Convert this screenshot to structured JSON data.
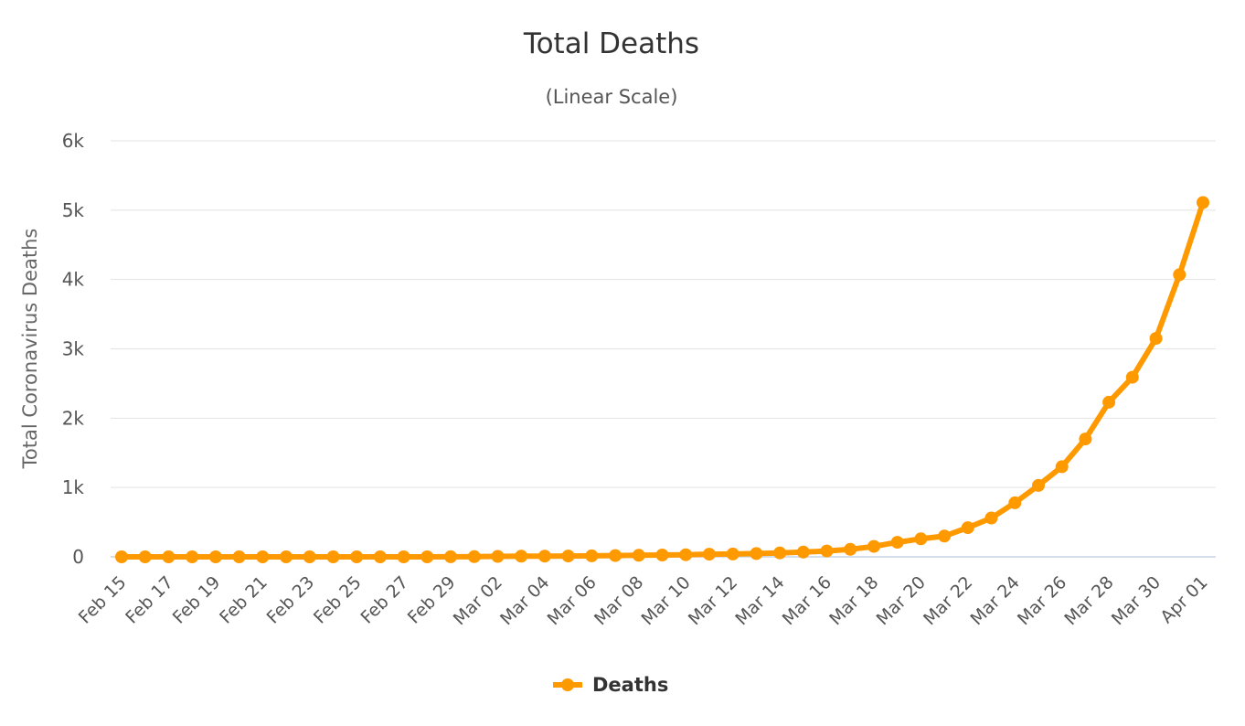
{
  "chart_data": {
    "type": "line",
    "title": "Total Deaths",
    "subtitle": "(Linear Scale)",
    "xlabel": "",
    "ylabel": "Total Coronavirus Deaths",
    "ylim": [
      0,
      6000
    ],
    "y_ticks": [
      {
        "value": 0,
        "label": "0"
      },
      {
        "value": 1000,
        "label": "1k"
      },
      {
        "value": 2000,
        "label": "2k"
      },
      {
        "value": 3000,
        "label": "3k"
      },
      {
        "value": 4000,
        "label": "4k"
      },
      {
        "value": 5000,
        "label": "5k"
      },
      {
        "value": 6000,
        "label": "6k"
      }
    ],
    "grid": true,
    "legend": "bottom-center",
    "color": "#ff9900",
    "categories": [
      "Feb 15",
      "Feb 16",
      "Feb 17",
      "Feb 18",
      "Feb 19",
      "Feb 20",
      "Feb 21",
      "Feb 22",
      "Feb 23",
      "Feb 24",
      "Feb 25",
      "Feb 26",
      "Feb 27",
      "Feb 28",
      "Feb 29",
      "Mar 01",
      "Mar 02",
      "Mar 03",
      "Mar 04",
      "Mar 05",
      "Mar 06",
      "Mar 07",
      "Mar 08",
      "Mar 09",
      "Mar 10",
      "Mar 11",
      "Mar 12",
      "Mar 13",
      "Mar 14",
      "Mar 15",
      "Mar 16",
      "Mar 17",
      "Mar 18",
      "Mar 19",
      "Mar 20",
      "Mar 21",
      "Mar 22",
      "Mar 23",
      "Mar 24",
      "Mar 25",
      "Mar 26",
      "Mar 27",
      "Mar 28",
      "Mar 29",
      "Mar 30",
      "Mar 31",
      "Apr 01"
    ],
    "x_tick_labels": [
      "Feb 15",
      "Feb 17",
      "Feb 19",
      "Feb 21",
      "Feb 23",
      "Feb 25",
      "Feb 27",
      "Feb 29",
      "Mar 02",
      "Mar 04",
      "Mar 06",
      "Mar 08",
      "Mar 10",
      "Mar 12",
      "Mar 14",
      "Mar 16",
      "Mar 18",
      "Mar 20",
      "Mar 22",
      "Mar 24",
      "Mar 26",
      "Mar 28",
      "Mar 30",
      "Apr 01"
    ],
    "series": [
      {
        "name": "Deaths",
        "values": [
          0,
          0,
          0,
          0,
          0,
          0,
          0,
          0,
          0,
          0,
          0,
          0,
          0,
          0,
          1,
          2,
          6,
          9,
          11,
          12,
          15,
          19,
          22,
          26,
          30,
          38,
          41,
          48,
          57,
          68,
          85,
          108,
          150,
          210,
          260,
          300,
          420,
          560,
          780,
          1030,
          1300,
          1700,
          2230,
          2590,
          3150,
          4070,
          5110
        ]
      }
    ]
  }
}
